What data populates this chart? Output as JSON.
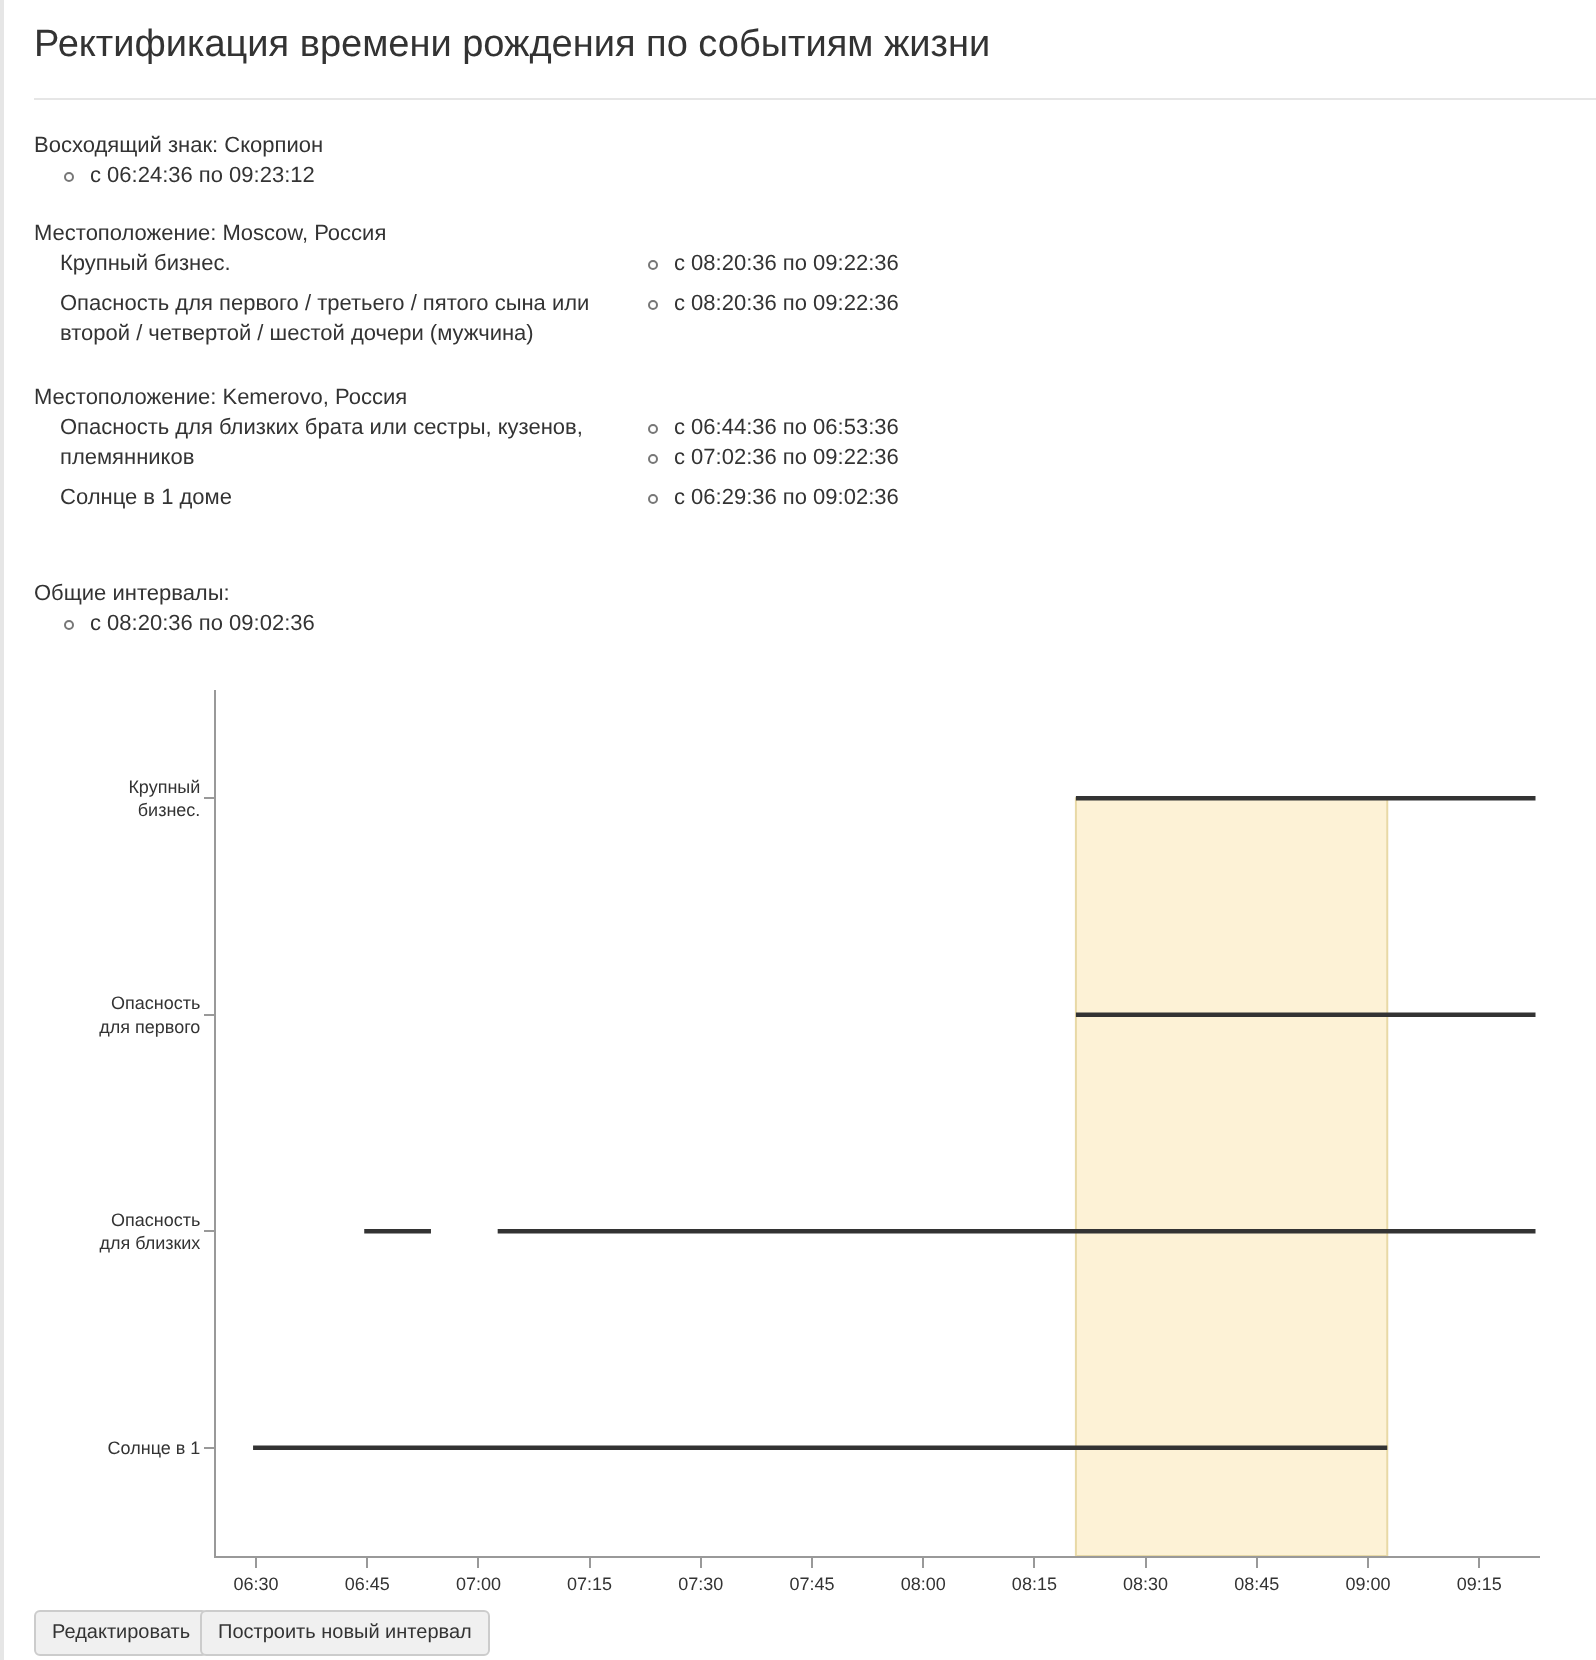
{
  "chart_data": {
    "type": "bar",
    "orientation": "horizontal",
    "title": "Ректификация времени рождения по событиям жизни",
    "categories": [
      "Крупный бизнес.",
      "Опасность для первого",
      "Опасность для близких",
      "Солнце в 1"
    ],
    "series": [
      {
        "color": "#333333",
        "values": [
          1.0333,
          1.0333,
          0.15,
          2.55
        ],
        "base": [
          8.3433,
          8.3433,
          6.7433,
          6.4933
        ]
      },
      {
        "color": "#333333",
        "values": [
          null,
          null,
          2.3333,
          null
        ],
        "base": [
          null,
          null,
          7.0433,
          null
        ]
      }
    ],
    "xlim": [
      6.41,
      9.3867
    ],
    "xticks": [
      {
        "value": 6.5,
        "label": "06:30"
      },
      {
        "value": 6.75,
        "label": "06:45"
      },
      {
        "value": 7,
        "label": "07:00"
      },
      {
        "value": 7.25,
        "label": "07:15"
      },
      {
        "value": 7.5,
        "label": "07:30"
      },
      {
        "value": 7.75,
        "label": "07:45"
      },
      {
        "value": 8,
        "label": "08:00"
      },
      {
        "value": 8.25,
        "label": "08:15"
      },
      {
        "value": 8.5,
        "label": "08:30"
      },
      {
        "value": 8.75,
        "label": "08:45"
      },
      {
        "value": 9,
        "label": "09:00"
      },
      {
        "value": 9.25,
        "label": "09:15"
      }
    ],
    "bands": [
      {
        "axis": "x",
        "from": 8.3433,
        "to": 9.0433,
        "color": "#fdf2d6"
      }
    ],
    "annotations": [
      "Восходящий знак: Скорпион",
      "с 06:24:36 по 09:23:12",
      "Местоположение: Moscow, Россия",
      "Крупный бизнес.",
      "с 08:20:36 по 09:22:36",
      "Опасность для первого / третьего / пятого сына или второй / четвертой / шестой дочери (мужчина)",
      "с 08:20:36 по 09:22:36",
      "Местоположение: Kemerovo, Россия",
      "Опасность для близких брата или сестры, кузенов, племянников",
      "с 06:44:36 по 06:53:36",
      "с 07:02:36 по 09:22:36",
      "Солнце в 1 доме",
      "с 06:29:36 по 09:02:36",
      "Общие интервалы:",
      "с 08:20:36 по 09:02:36",
      "Редактировать",
      "Построить новый интервал"
    ]
  }
}
